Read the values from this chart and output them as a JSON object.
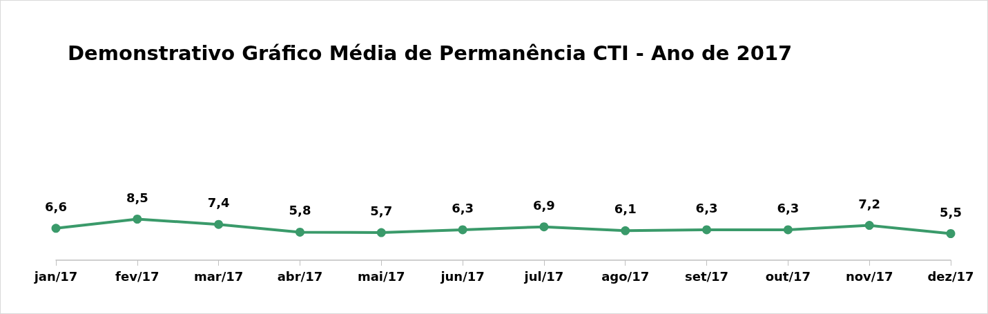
{
  "chart_data": {
    "type": "line",
    "title": "Demonstrativo Gráfico Média de Permanência CTI - Ano de 2017",
    "categories": [
      "jan/17",
      "fev/17",
      "mar/17",
      "abr/17",
      "mai/17",
      "jun/17",
      "jul/17",
      "ago/17",
      "set/17",
      "out/17",
      "nov/17",
      "dez/17"
    ],
    "series": [
      {
        "color": "#3a9a6a",
        "values": [
          6.6,
          8.5,
          7.4,
          5.8,
          5.7,
          6.3,
          6.9,
          6.1,
          6.3,
          6.3,
          7.2,
          5.5
        ],
        "value_labels": [
          "6,6",
          "8,5",
          "7,4",
          "5,8",
          "5,7",
          "6,3",
          "6,9",
          "6,1",
          "6,3",
          "6,3",
          "7,2",
          "5,5"
        ]
      }
    ],
    "tick_labels": "x",
    "marker": "circle",
    "line_style": "solid",
    "grid": false
  }
}
